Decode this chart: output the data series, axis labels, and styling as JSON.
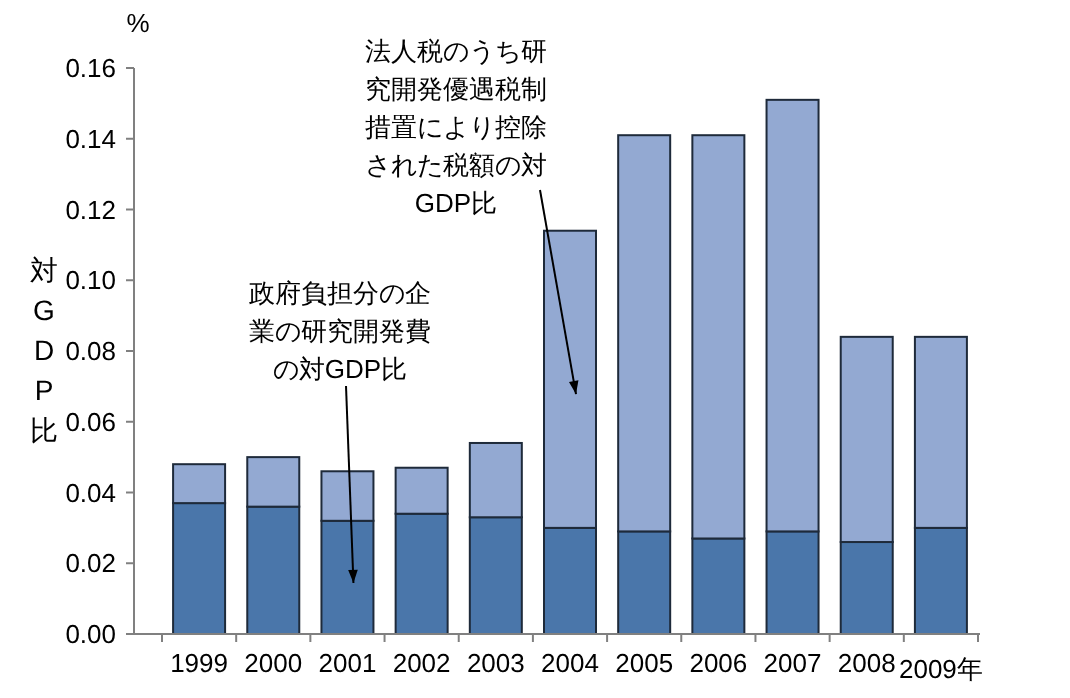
{
  "chart_data": {
    "type": "bar",
    "stacked": true,
    "ylabel": "対GDP比",
    "annotations": [
      "%"
    ],
    "categories": [
      "1999",
      "2000",
      "2001",
      "2002",
      "2003",
      "2004",
      "2005",
      "2006",
      "2007",
      "2008",
      "2009年"
    ],
    "series": [
      {
        "name": "政府負担分の企業の研究開発費の対GDP比",
        "color": "#4a76aa",
        "values": [
          0.037,
          0.036,
          0.032,
          0.034,
          0.033,
          0.03,
          0.029,
          0.027,
          0.029,
          0.026,
          0.03
        ]
      },
      {
        "name": "法人税のうち研究開発優遇税制措置により控除された税額の対GDP比",
        "color": "#93a9d2",
        "values": [
          0.011,
          0.014,
          0.014,
          0.013,
          0.021,
          0.084,
          0.112,
          0.114,
          0.122,
          0.058,
          0.054
        ]
      }
    ],
    "ylim": [
      0,
      0.16
    ],
    "yticks": [
      {
        "value": 0,
        "label": "0.00"
      },
      {
        "value": 0.02,
        "label": "0.02"
      },
      {
        "value": 0.04,
        "label": "0.04"
      },
      {
        "value": 0.06,
        "label": "0.06"
      },
      {
        "value": 0.08,
        "label": "0.08"
      },
      {
        "value": 0.1,
        "label": "0.10"
      },
      {
        "value": 0.12,
        "label": "0.12"
      },
      {
        "value": 0.14,
        "label": "0.14"
      },
      {
        "value": 0.16,
        "label": "0.16"
      }
    ],
    "grid": false,
    "legend": false
  }
}
